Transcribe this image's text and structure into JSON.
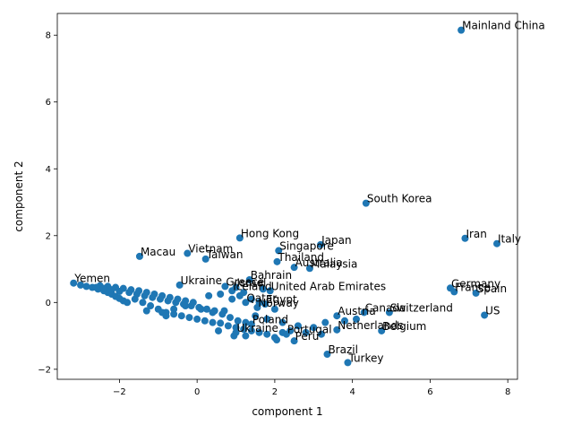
{
  "chart_data": {
    "type": "scatter",
    "title": "",
    "xlabel": "component 1",
    "ylabel": "component 2",
    "xlim": [
      -3.6,
      8.25
    ],
    "ylim": [
      -2.3,
      8.65
    ],
    "xticks": [
      -2,
      0,
      2,
      4,
      6,
      8
    ],
    "xtick_labels": [
      "−2",
      "0",
      "2",
      "4",
      "6",
      "8"
    ],
    "yticks": [
      -2,
      0,
      2,
      4,
      6,
      8
    ],
    "ytick_labels": [
      "−2",
      "0",
      "2",
      "4",
      "6",
      "8"
    ],
    "grid": false,
    "marker_color": "#1f77b4",
    "labeled_points": [
      {
        "label": "Mainland China",
        "x": 6.8,
        "y": 8.15
      },
      {
        "label": "South Korea",
        "x": 4.35,
        "y": 2.97
      },
      {
        "label": "Iran",
        "x": 6.9,
        "y": 1.92
      },
      {
        "label": "Italy",
        "x": 7.72,
        "y": 1.76
      },
      {
        "label": "Japan",
        "x": 3.18,
        "y": 1.73
      },
      {
        "label": "Hong Kong",
        "x": 1.1,
        "y": 1.93
      },
      {
        "label": "Singapore",
        "x": 2.1,
        "y": 1.55
      },
      {
        "label": "Thailand",
        "x": 2.06,
        "y": 1.22
      },
      {
        "label": "Australia",
        "x": 2.5,
        "y": 1.05
      },
      {
        "label": "Malaysia",
        "x": 2.9,
        "y": 1.02
      },
      {
        "label": "Macau",
        "x": -1.48,
        "y": 1.38
      },
      {
        "label": "Vietnam",
        "x": -0.25,
        "y": 1.47
      },
      {
        "label": "Taiwan",
        "x": 0.22,
        "y": 1.3
      },
      {
        "label": "Bahrain",
        "x": 1.35,
        "y": 0.68
      },
      {
        "label": "United Arab Emirates",
        "x": 1.88,
        "y": 0.35
      },
      {
        "label": "Germany",
        "x": 6.52,
        "y": 0.43
      },
      {
        "label": "France",
        "x": 6.62,
        "y": 0.32
      },
      {
        "label": "Spain",
        "x": 7.18,
        "y": 0.28
      },
      {
        "label": "Switzerland",
        "x": 4.95,
        "y": -0.3
      },
      {
        "label": "US",
        "x": 7.4,
        "y": -0.38
      },
      {
        "label": "Belgium",
        "x": 4.75,
        "y": -0.85
      },
      {
        "label": "Brazil",
        "x": 3.35,
        "y": -1.55
      },
      {
        "label": "Turkey",
        "x": 3.88,
        "y": -1.8
      },
      {
        "label": "Yemen",
        "x": -3.18,
        "y": 0.58
      },
      {
        "label": "Ukraine",
        "x": -0.45,
        "y": 0.52
      },
      {
        "label": "Greece",
        "x": 0.72,
        "y": 0.48
      },
      {
        "label": "Israel",
        "x": 1.0,
        "y": 0.45
      },
      {
        "label": "Iceland",
        "x": 0.9,
        "y": 0.35
      },
      {
        "label": "Egypt",
        "x": 1.75,
        "y": -0.05
      },
      {
        "label": "Norway",
        "x": 1.55,
        "y": -0.15
      },
      {
        "label": "Austria",
        "x": 3.6,
        "y": -0.4
      },
      {
        "label": "Canada",
        "x": 4.3,
        "y": -0.3
      },
      {
        "label": "Netherlands",
        "x": 3.6,
        "y": -0.82
      },
      {
        "label": "Portugal",
        "x": 2.3,
        "y": -0.95
      },
      {
        "label": "Ukraine",
        "x": 1.0,
        "y": -0.9
      },
      {
        "label": "Peru",
        "x": 2.5,
        "y": -1.15
      },
      {
        "label": "Poland",
        "x": 1.4,
        "y": -0.65
      },
      {
        "label": "Qatar",
        "x": 1.25,
        "y": 0.0
      }
    ],
    "unlabeled_points": [
      {
        "x": -3.0,
        "y": 0.52
      },
      {
        "x": -2.85,
        "y": 0.48
      },
      {
        "x": -2.7,
        "y": 0.45
      },
      {
        "x": -2.55,
        "y": 0.4
      },
      {
        "x": -2.4,
        "y": 0.35
      },
      {
        "x": -2.3,
        "y": 0.3
      },
      {
        "x": -2.2,
        "y": 0.25
      },
      {
        "x": -2.1,
        "y": 0.18
      },
      {
        "x": -2.0,
        "y": 0.12
      },
      {
        "x": -1.9,
        "y": 0.05
      },
      {
        "x": -1.8,
        "y": 0.0
      },
      {
        "x": -2.5,
        "y": 0.5
      },
      {
        "x": -2.3,
        "y": 0.48
      },
      {
        "x": -2.1,
        "y": 0.45
      },
      {
        "x": -1.9,
        "y": 0.42
      },
      {
        "x": -1.7,
        "y": 0.38
      },
      {
        "x": -1.5,
        "y": 0.35
      },
      {
        "x": -1.3,
        "y": 0.3
      },
      {
        "x": -1.1,
        "y": 0.25
      },
      {
        "x": -0.9,
        "y": 0.2
      },
      {
        "x": -0.7,
        "y": 0.15
      },
      {
        "x": -0.5,
        "y": 0.1
      },
      {
        "x": -0.3,
        "y": 0.05
      },
      {
        "x": -0.1,
        "y": 0.0
      },
      {
        "x": -1.6,
        "y": 0.1
      },
      {
        "x": -1.4,
        "y": 0.0
      },
      {
        "x": -1.2,
        "y": -0.1
      },
      {
        "x": -1.0,
        "y": -0.2
      },
      {
        "x": -0.8,
        "y": -0.3
      },
      {
        "x": -0.6,
        "y": -0.35
      },
      {
        "x": -0.4,
        "y": -0.4
      },
      {
        "x": -0.2,
        "y": -0.45
      },
      {
        "x": 0.0,
        "y": -0.5
      },
      {
        "x": 0.2,
        "y": -0.55
      },
      {
        "x": 0.4,
        "y": -0.6
      },
      {
        "x": 0.6,
        "y": -0.62
      },
      {
        "x": 0.8,
        "y": -0.7
      },
      {
        "x": 1.0,
        "y": -0.75
      },
      {
        "x": 1.2,
        "y": -0.8
      },
      {
        "x": 1.4,
        "y": -0.85
      },
      {
        "x": 1.6,
        "y": -0.9
      },
      {
        "x": 1.8,
        "y": -0.95
      },
      {
        "x": 2.0,
        "y": -1.05
      },
      {
        "x": 2.2,
        "y": -0.9
      },
      {
        "x": 0.55,
        "y": -0.85
      },
      {
        "x": 0.95,
        "y": -1.0
      },
      {
        "x": 1.25,
        "y": -1.0
      },
      {
        "x": 2.05,
        "y": -1.12
      },
      {
        "x": 1.5,
        "y": -0.4
      },
      {
        "x": 1.8,
        "y": -0.5
      },
      {
        "x": 2.2,
        "y": -0.6
      },
      {
        "x": 2.6,
        "y": -0.7
      },
      {
        "x": 3.0,
        "y": -0.75
      },
      {
        "x": 3.3,
        "y": -0.6
      },
      {
        "x": 3.8,
        "y": -0.55
      },
      {
        "x": 4.1,
        "y": -0.5
      },
      {
        "x": 0.3,
        "y": 0.2
      },
      {
        "x": 0.6,
        "y": 0.25
      },
      {
        "x": 1.2,
        "y": 0.3
      },
      {
        "x": 1.7,
        "y": 0.4
      },
      {
        "x": -0.9,
        "y": -0.3
      },
      {
        "x": -0.6,
        "y": -0.2
      },
      {
        "x": -0.3,
        "y": -0.1
      },
      {
        "x": 0.1,
        "y": -0.2
      },
      {
        "x": 0.4,
        "y": -0.3
      },
      {
        "x": 0.7,
        "y": -0.25
      },
      {
        "x": -0.8,
        "y": -0.4
      },
      {
        "x": -1.3,
        "y": -0.25
      },
      {
        "x": -2.6,
        "y": 0.45
      },
      {
        "x": -2.4,
        "y": 0.42
      },
      {
        "x": -2.2,
        "y": 0.38
      },
      {
        "x": -2.0,
        "y": 0.33
      },
      {
        "x": -1.75,
        "y": 0.3
      },
      {
        "x": -1.55,
        "y": 0.25
      },
      {
        "x": -1.35,
        "y": 0.2
      },
      {
        "x": -1.15,
        "y": 0.15
      },
      {
        "x": -0.95,
        "y": 0.1
      },
      {
        "x": -0.75,
        "y": 0.05
      },
      {
        "x": -0.55,
        "y": 0.0
      },
      {
        "x": -0.35,
        "y": -0.05
      },
      {
        "x": -0.15,
        "y": -0.1
      },
      {
        "x": 0.05,
        "y": -0.15
      },
      {
        "x": 0.25,
        "y": -0.2
      },
      {
        "x": 0.45,
        "y": -0.25
      },
      {
        "x": 0.65,
        "y": -0.35
      },
      {
        "x": 0.85,
        "y": -0.45
      },
      {
        "x": 1.05,
        "y": -0.55
      },
      {
        "x": 1.25,
        "y": -0.6
      },
      {
        "x": 2.4,
        "y": -0.85
      },
      {
        "x": 2.8,
        "y": -0.9
      },
      {
        "x": 3.2,
        "y": -0.95
      },
      {
        "x": 0.9,
        "y": 0.1
      },
      {
        "x": 1.1,
        "y": 0.2
      },
      {
        "x": 1.4,
        "y": 0.1
      },
      {
        "x": 1.6,
        "y": 0.0
      },
      {
        "x": 2.0,
        "y": -0.2
      }
    ]
  }
}
